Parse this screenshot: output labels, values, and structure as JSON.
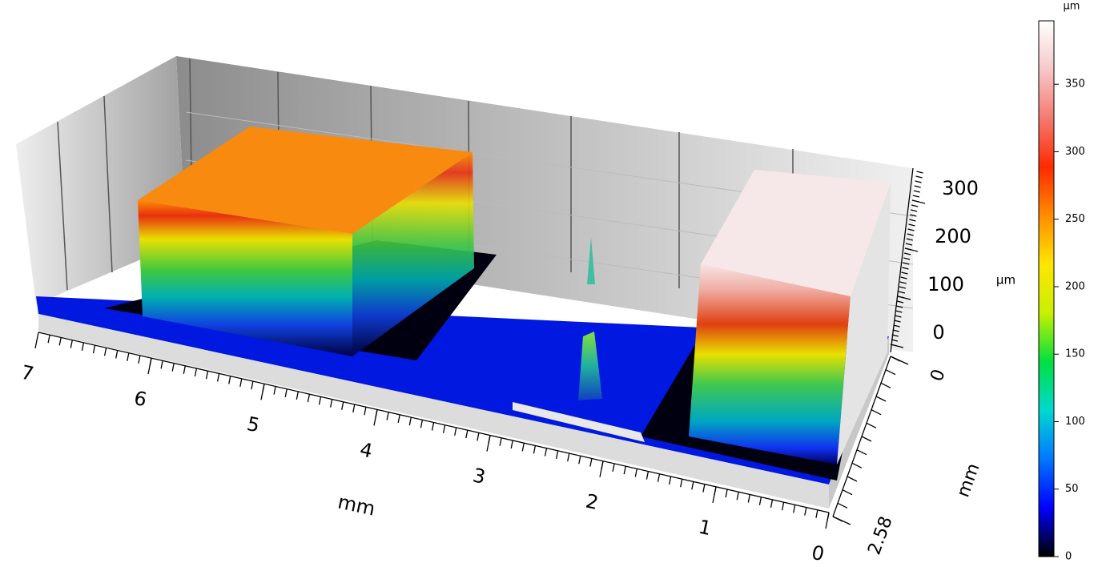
{
  "chart_data": {
    "type": "surface3d",
    "xlabel": "mm",
    "xlim": [
      0,
      7
    ],
    "xticks": [
      0,
      1,
      2,
      3,
      4,
      5,
      6,
      7
    ],
    "ylabel": "mm",
    "ylim": [
      0,
      2.58
    ],
    "yticks": [
      0,
      2.58
    ],
    "zlabel": "µm",
    "zticks": [
      0,
      100,
      200,
      300
    ],
    "colorbar": {
      "label": "µm",
      "lim": [
        0,
        397
      ],
      "ticks": [
        0,
        50,
        100,
        150,
        200,
        250,
        300,
        350
      ],
      "colormap": [
        "#000000",
        "#0000ff",
        "#0078ff",
        "#00d8d0",
        "#00e040",
        "#c8f000",
        "#ffe600",
        "#ff8c00",
        "#ff2a00",
        "#f47a70",
        "#f6c8c8",
        "#ffffff"
      ]
    }
  }
}
